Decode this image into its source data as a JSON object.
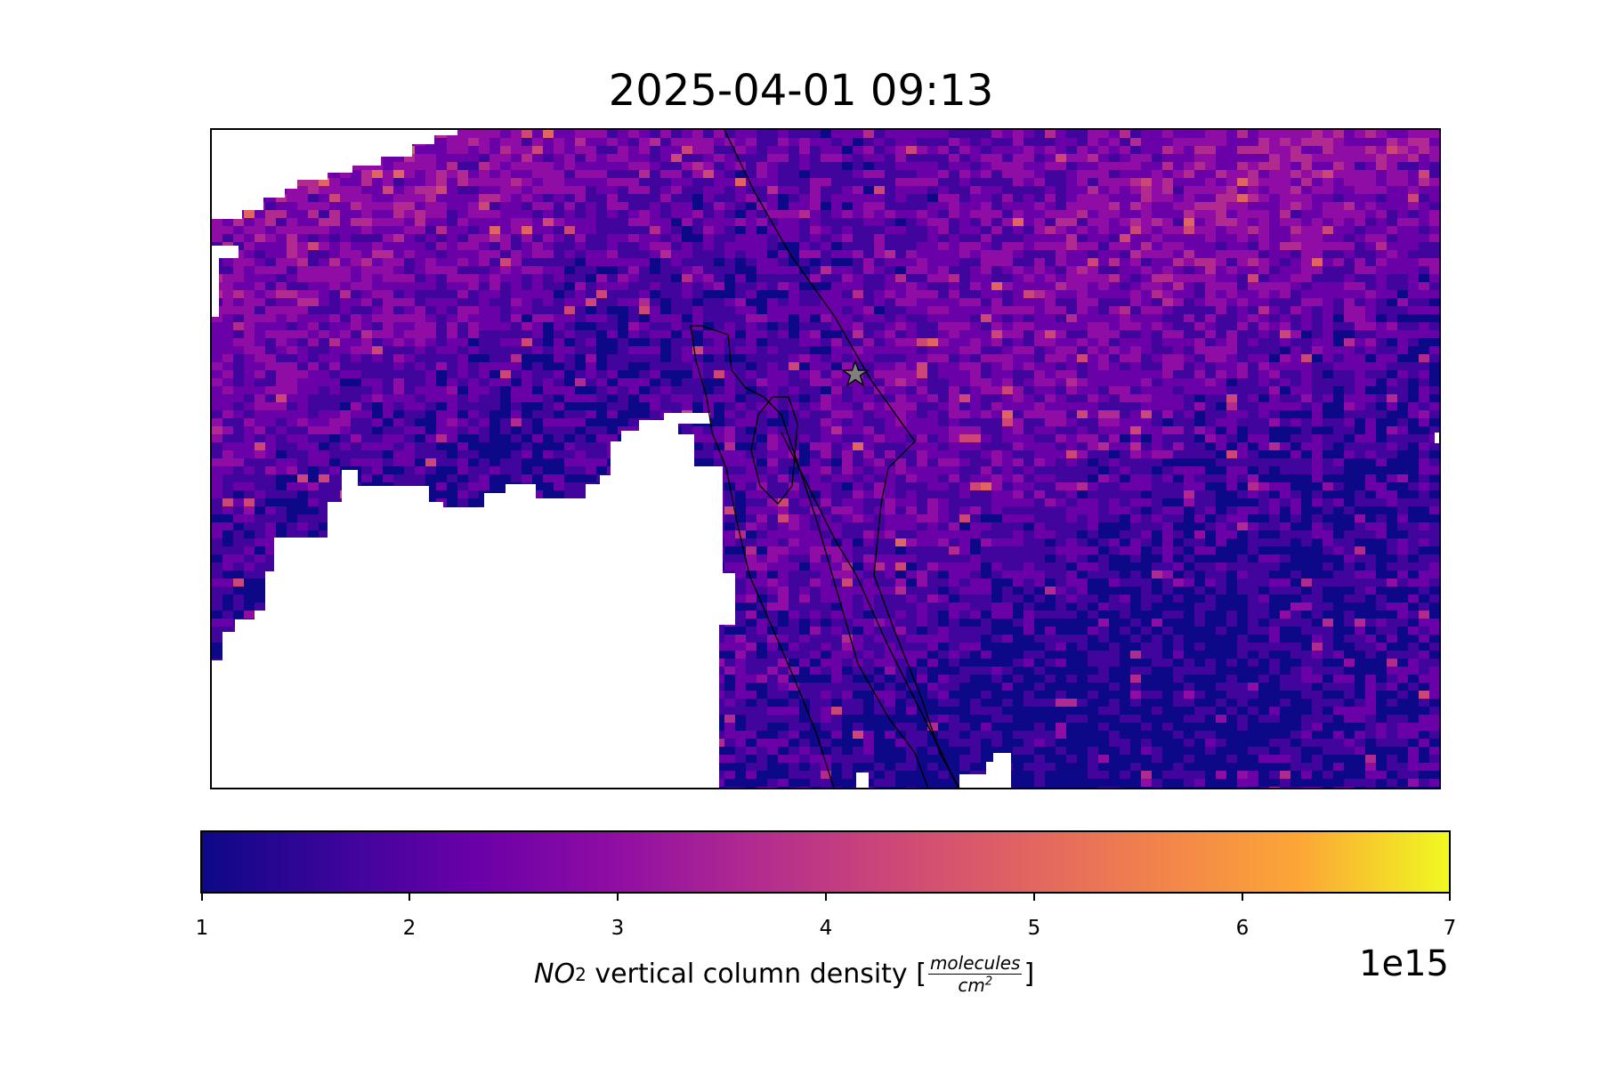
{
  "title": "2025-04-01 09:13",
  "map": {
    "colormap": [
      "#0d0887",
      "#41049d",
      "#6a00a8",
      "#8f0da4",
      "#b12a90",
      "#cc4778",
      "#e16462",
      "#f2844b",
      "#fca636",
      "#f0f921"
    ],
    "value_range": [
      1,
      7
    ],
    "no_data_color": "#ffffff",
    "marker": "star-icon",
    "marker_color": "#808080"
  },
  "colorbar": {
    "ticks": [
      "1",
      "2",
      "3",
      "4",
      "5",
      "6",
      "7"
    ],
    "label_symbol": "NO",
    "label_subscript": "2",
    "label_text": " vertical column density [",
    "label_end": "]",
    "unit_numerator": "molecules",
    "unit_denominator_base": "cm",
    "unit_denominator_exp": "2",
    "exponent_label": "1e15"
  }
}
